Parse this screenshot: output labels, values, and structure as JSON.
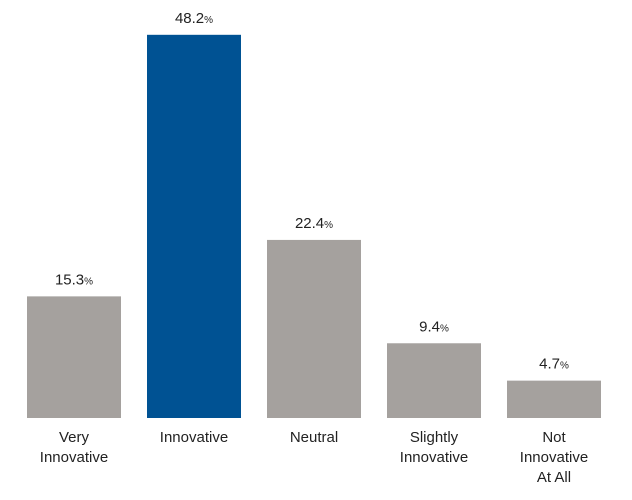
{
  "chart_data": {
    "type": "bar",
    "categories": [
      [
        "Very",
        "Innovative"
      ],
      [
        "Innovative"
      ],
      [
        "Neutral"
      ],
      [
        "Slightly",
        "Innovative"
      ],
      [
        "Not",
        "Innovative",
        "At All"
      ]
    ],
    "values": [
      15.3,
      48.2,
      22.4,
      9.4,
      4.7
    ],
    "value_labels": [
      "15.3",
      "48.2",
      "22.4",
      "9.4",
      "4.7"
    ],
    "value_suffix": "%",
    "ylim": [
      0,
      50
    ],
    "highlight_index": 1,
    "colors": {
      "default_bar": "#a5a19e",
      "highlight_bar": "#005293",
      "text": "#222222",
      "background": "#ffffff"
    },
    "grid": false,
    "legend": "none"
  }
}
